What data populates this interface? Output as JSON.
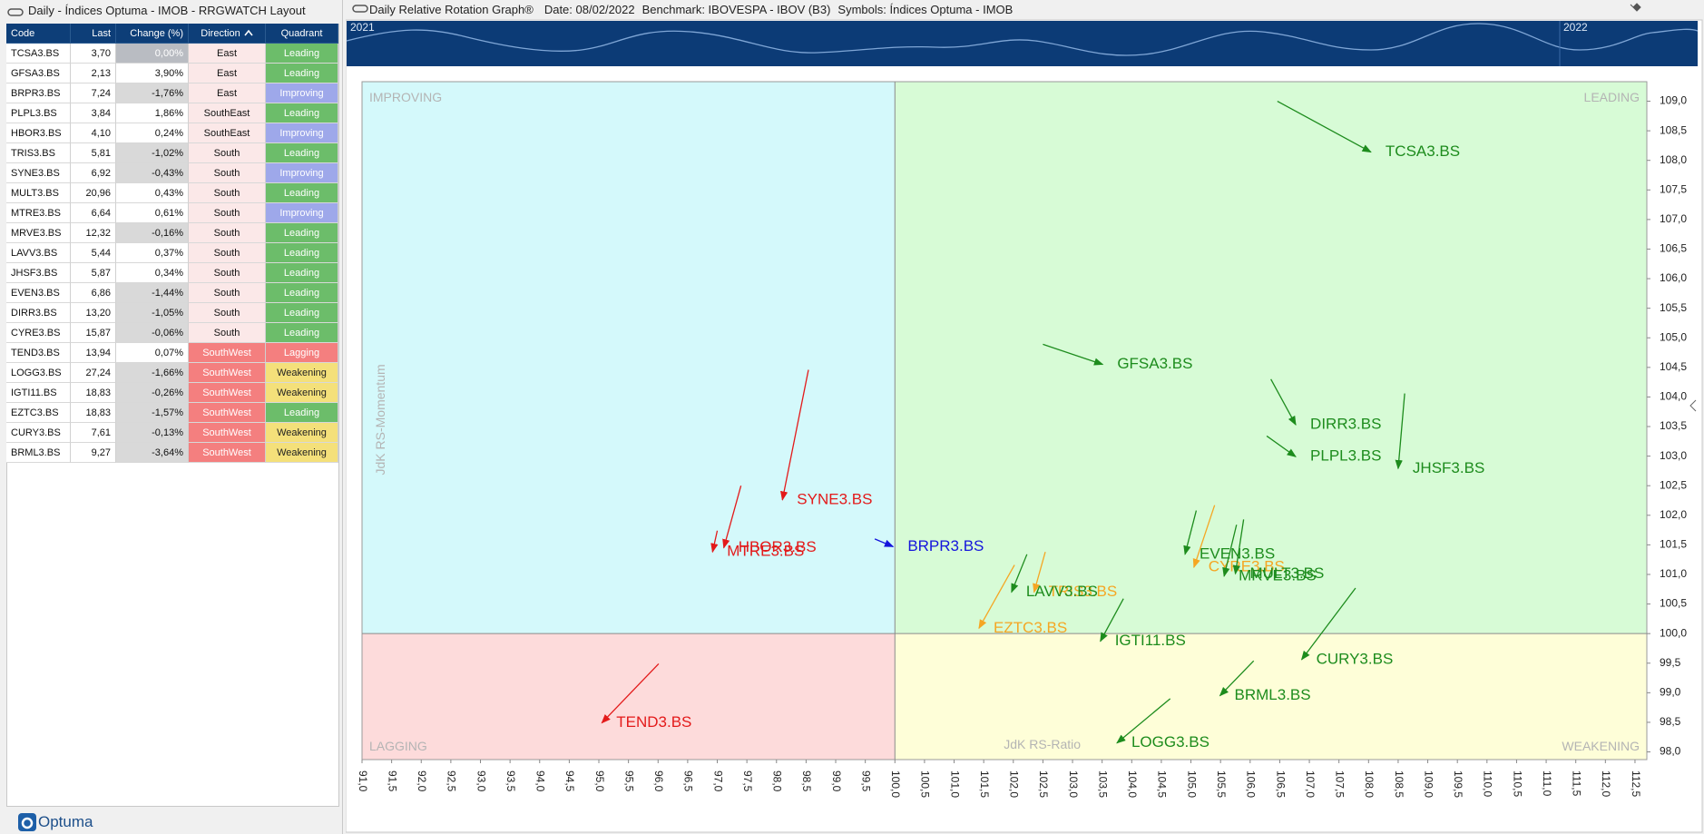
{
  "left_panel": {
    "title": "Daily - Índices Optuma - IMOB - RRGWATCH Layout",
    "table": {
      "columns": [
        "Code",
        "Last",
        "Change (%)",
        "Direction",
        "Quadrant"
      ],
      "rows": [
        [
          "TCSA3.BS",
          "3,70",
          "0,00%",
          "East",
          "Leading"
        ],
        [
          "GFSA3.BS",
          "2,13",
          "3,90%",
          "East",
          "Leading"
        ],
        [
          "BRPR3.BS",
          "7,24",
          "-1,76%",
          "East",
          "Improving"
        ],
        [
          "PLPL3.BS",
          "3,84",
          "1,86%",
          "SouthEast",
          "Leading"
        ],
        [
          "HBOR3.BS",
          "4,10",
          "0,24%",
          "SouthEast",
          "Improving"
        ],
        [
          "TRIS3.BS",
          "5,81",
          "-1,02%",
          "South",
          "Leading"
        ],
        [
          "SYNE3.BS",
          "6,92",
          "-0,43%",
          "South",
          "Improving"
        ],
        [
          "MULT3.BS",
          "20,96",
          "0,43%",
          "South",
          "Leading"
        ],
        [
          "MTRE3.BS",
          "6,64",
          "0,61%",
          "South",
          "Improving"
        ],
        [
          "MRVE3.BS",
          "12,32",
          "-0,16%",
          "South",
          "Leading"
        ],
        [
          "LAVV3.BS",
          "5,44",
          "0,37%",
          "South",
          "Leading"
        ],
        [
          "JHSF3.BS",
          "5,87",
          "0,34%",
          "South",
          "Leading"
        ],
        [
          "EVEN3.BS",
          "6,86",
          "-1,44%",
          "South",
          "Leading"
        ],
        [
          "DIRR3.BS",
          "13,20",
          "-1,05%",
          "South",
          "Leading"
        ],
        [
          "CYRE3.BS",
          "15,87",
          "-0,06%",
          "South",
          "Leading"
        ],
        [
          "TEND3.BS",
          "13,94",
          "0,07%",
          "SouthWest",
          "Lagging"
        ],
        [
          "LOGG3.BS",
          "27,24",
          "-1,66%",
          "SouthWest",
          "Weakening"
        ],
        [
          "IGTI11.BS",
          "18,83",
          "-0,26%",
          "SouthWest",
          "Weakening"
        ],
        [
          "EZTC3.BS",
          "18,83",
          "-1,57%",
          "SouthWest",
          "Leading"
        ],
        [
          "CURY3.BS",
          "7,61",
          "-0,13%",
          "SouthWest",
          "Weakening"
        ],
        [
          "BRML3.BS",
          "9,27",
          "-3,64%",
          "SouthWest",
          "Weakening"
        ]
      ],
      "quadrant_colors": {
        "Leading": "#6cbd6a",
        "Improving": "#9ea8ea",
        "Lagging": "#f47f7f",
        "Weakening": "#f4e07a"
      },
      "direction_colors": {
        "East": "#fbe8e8",
        "SouthEast": "#fbe8e8",
        "South": "#fbe8e8",
        "SouthWest": "#f47f7f"
      }
    },
    "logo": "Optuma"
  },
  "right_panel": {
    "title": "Daily Relative Rotation Graph®",
    "date": "Date: 08/02/2022",
    "benchmark": "Benchmark: IBOVESPA - IBOV (B3)",
    "symbols": "Symbols: Índices Optuma - IMOB",
    "minimap_labels": [
      "2021",
      "2022"
    ]
  },
  "chart_data": {
    "type": "rrg",
    "x_label": "JdK RS-Ratio",
    "y_label": "JdK RS-Momentum",
    "quadrants": {
      "top_left": "IMPROVING",
      "top_right": "LEADING",
      "bottom_left": "LAGGING",
      "bottom_right": "WEAKENING"
    },
    "quadrant_colors": {
      "top_left": "#d4f9fb",
      "top_right": "#d7fbd6",
      "bottom_left": "#fddbdb",
      "bottom_right": "#fefed8"
    },
    "center": [
      100,
      100
    ],
    "xlim": [
      91,
      112.7
    ],
    "ylim": [
      97.87,
      109.33
    ],
    "xticks": [
      {
        "value": 91,
        "label": "91,0"
      },
      {
        "value": 91.5,
        "label": "91,5"
      },
      {
        "value": 92,
        "label": "92,0"
      },
      {
        "value": 92.5,
        "label": "92,5"
      },
      {
        "value": 93,
        "label": "93,0"
      },
      {
        "value": 93.5,
        "label": "93,5"
      },
      {
        "value": 94,
        "label": "94,0"
      },
      {
        "value": 94.5,
        "label": "94,5"
      },
      {
        "value": 95,
        "label": "95,0"
      },
      {
        "value": 95.5,
        "label": "95,5"
      },
      {
        "value": 96,
        "label": "96,0"
      },
      {
        "value": 96.5,
        "label": "96,5"
      },
      {
        "value": 97,
        "label": "97,0"
      },
      {
        "value": 97.5,
        "label": "97,5"
      },
      {
        "value": 98,
        "label": "98,0"
      },
      {
        "value": 98.5,
        "label": "98,5"
      },
      {
        "value": 99,
        "label": "99,0"
      },
      {
        "value": 99.5,
        "label": "99,5"
      },
      {
        "value": 100,
        "label": "100,0"
      },
      {
        "value": 100.5,
        "label": "100,5"
      },
      {
        "value": 101,
        "label": "101,0"
      },
      {
        "value": 101.5,
        "label": "101,5"
      },
      {
        "value": 102,
        "label": "102,0"
      },
      {
        "value": 102.5,
        "label": "102,5"
      },
      {
        "value": 103,
        "label": "103,0"
      },
      {
        "value": 103.5,
        "label": "103,5"
      },
      {
        "value": 104,
        "label": "104,0"
      },
      {
        "value": 104.5,
        "label": "104,5"
      },
      {
        "value": 105,
        "label": "105,0"
      },
      {
        "value": 105.5,
        "label": "105,5"
      },
      {
        "value": 106,
        "label": "106,0"
      },
      {
        "value": 106.5,
        "label": "106,5"
      },
      {
        "value": 107,
        "label": "107,0"
      },
      {
        "value": 107.5,
        "label": "107,5"
      },
      {
        "value": 108,
        "label": "108,0"
      },
      {
        "value": 108.5,
        "label": "108,5"
      },
      {
        "value": 109,
        "label": "109,0"
      },
      {
        "value": 109.5,
        "label": "109,5"
      },
      {
        "value": 110,
        "label": "110,0"
      },
      {
        "value": 110.5,
        "label": "110,5"
      },
      {
        "value": 111,
        "label": "111,0"
      },
      {
        "value": 111.5,
        "label": "111,5"
      },
      {
        "value": 112,
        "label": "112,0"
      },
      {
        "value": 112.5,
        "label": "112,5"
      }
    ],
    "yticks": [
      {
        "value": 98,
        "label": "98,0"
      },
      {
        "value": 98.5,
        "label": "98,5"
      },
      {
        "value": 99,
        "label": "99,0"
      },
      {
        "value": 99.5,
        "label": "99,5"
      },
      {
        "value": 100,
        "label": "100,0"
      },
      {
        "value": 100.5,
        "label": "100,5"
      },
      {
        "value": 101,
        "label": "101,0"
      },
      {
        "value": 101.5,
        "label": "101,5"
      },
      {
        "value": 102,
        "label": "102,0"
      },
      {
        "value": 102.5,
        "label": "102,5"
      },
      {
        "value": 103,
        "label": "103,0"
      },
      {
        "value": 103.5,
        "label": "103,5"
      },
      {
        "value": 104,
        "label": "104,0"
      },
      {
        "value": 104.5,
        "label": "104,5"
      },
      {
        "value": 105,
        "label": "105,0"
      },
      {
        "value": 105.5,
        "label": "105,5"
      },
      {
        "value": 106,
        "label": "106,0"
      },
      {
        "value": 106.5,
        "label": "106,5"
      },
      {
        "value": 107,
        "label": "107,0"
      },
      {
        "value": 107.5,
        "label": "107,5"
      },
      {
        "value": 108,
        "label": "108,0"
      },
      {
        "value": 108.5,
        "label": "108,5"
      },
      {
        "value": 109,
        "label": "109,0"
      }
    ],
    "series": [
      {
        "name": "TCSA3.BS",
        "color": "#1d8c1d",
        "x": [
          106.46,
          108.04
        ],
        "y": [
          109.0,
          108.14
        ]
      },
      {
        "name": "GFSA3.BS",
        "color": "#1d8c1d",
        "x": [
          102.5,
          103.51
        ],
        "y": [
          104.89,
          104.55
        ]
      },
      {
        "name": "DIRR3.BS",
        "color": "#1d8c1d",
        "x": [
          106.35,
          106.77
        ],
        "y": [
          104.3,
          103.53
        ]
      },
      {
        "name": "PLPL3.BS",
        "color": "#1d8c1d",
        "x": [
          106.28,
          106.77
        ],
        "y": [
          103.34,
          102.99
        ]
      },
      {
        "name": "JHSF3.BS",
        "color": "#1d8c1d",
        "x": [
          108.61,
          108.5
        ],
        "y": [
          104.06,
          102.79
        ]
      },
      {
        "name": "SYNE3.BS",
        "color": "#e31a1a",
        "x": [
          98.54,
          98.1
        ],
        "y": [
          104.46,
          102.26
        ]
      },
      {
        "name": "HBOR3.BS",
        "color": "#e31a1a",
        "x": [
          97.4,
          97.11
        ],
        "y": [
          102.5,
          101.45
        ]
      },
      {
        "name": "MTRE3.BS",
        "color": "#e31a1a",
        "x": [
          97.0,
          96.92
        ],
        "y": [
          101.74,
          101.38
        ]
      },
      {
        "name": "BRPR3.BS",
        "color": "#1414dc",
        "x": [
          99.66,
          99.97
        ],
        "y": [
          101.6,
          101.47
        ]
      },
      {
        "name": "TEND3.BS",
        "color": "#e31a1a",
        "x": [
          96.01,
          95.05
        ],
        "y": [
          99.49,
          98.49
        ]
      },
      {
        "name": "EVEN3.BS",
        "color": "#1d8c1d",
        "x": [
          105.09,
          104.9
        ],
        "y": [
          102.08,
          101.34
        ]
      },
      {
        "name": "CYRE3.BS",
        "color": "#f5a623",
        "x": [
          105.4,
          105.05
        ],
        "y": [
          102.17,
          101.12
        ]
      },
      {
        "name": "MRVE3.BS",
        "color": "#1d8c1d",
        "x": [
          105.77,
          105.56
        ],
        "y": [
          101.84,
          100.97
        ]
      },
      {
        "name": "MULT3.BS",
        "color": "#1d8c1d",
        "x": [
          105.89,
          105.75
        ],
        "y": [
          101.93,
          101.01
        ]
      },
      {
        "name": "TRIS3.BS",
        "color": "#f5a623",
        "x": [
          102.54,
          102.35
        ],
        "y": [
          101.38,
          100.7
        ]
      },
      {
        "name": "EZTC3.BS",
        "color": "#f5a623",
        "x": [
          102.02,
          101.42
        ],
        "y": [
          101.16,
          100.09
        ]
      },
      {
        "name": "LAVV3.BS",
        "color": "#1d8c1d",
        "x": [
          102.23,
          101.97
        ],
        "y": [
          101.34,
          100.7
        ]
      },
      {
        "name": "IGTI11.BS",
        "color": "#1d8c1d",
        "x": [
          103.86,
          103.47
        ],
        "y": [
          100.59,
          99.87
        ]
      },
      {
        "name": "CURY3.BS",
        "color": "#1d8c1d",
        "x": [
          107.78,
          106.87
        ],
        "y": [
          100.77,
          99.56
        ]
      },
      {
        "name": "BRML3.BS",
        "color": "#1d8c1d",
        "x": [
          106.06,
          105.49
        ],
        "y": [
          99.54,
          98.95
        ]
      },
      {
        "name": "LOGG3.BS",
        "color": "#1d8c1d",
        "x": [
          104.65,
          103.75
        ],
        "y": [
          98.9,
          98.15
        ]
      }
    ]
  }
}
